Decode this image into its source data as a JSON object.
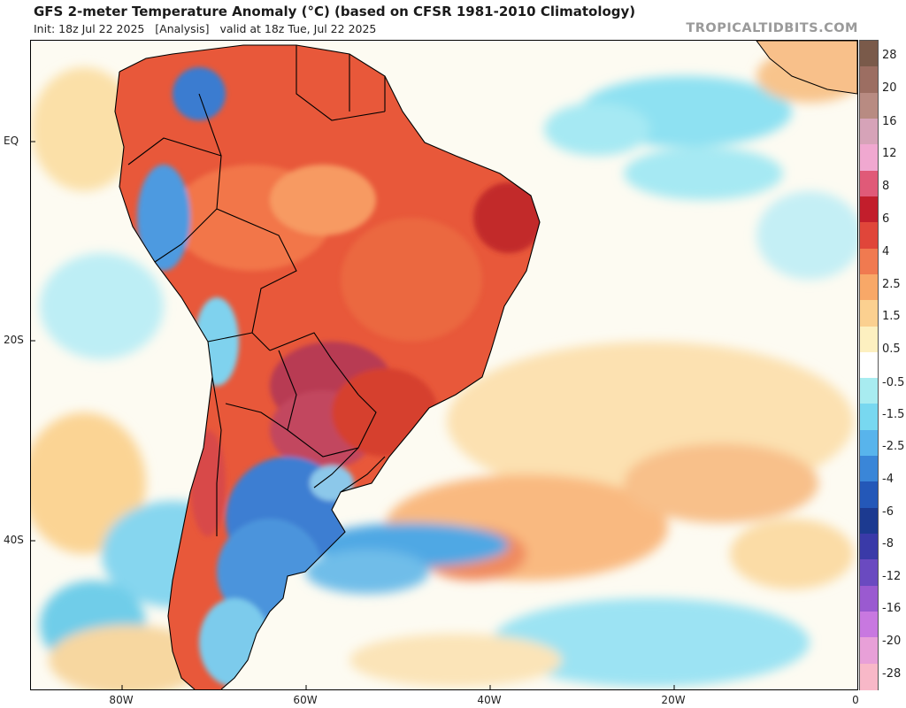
{
  "header": {
    "title": "GFS 2-meter Temperature Anomaly (°C) (based on CFSR 1981-2010 Climatology)",
    "subtitle": "Init: 18z Jul 22 2025   [Analysis]   valid at 18z Tue, Jul 22 2025",
    "brand": "TROPICALTIDBITS.COM"
  },
  "map": {
    "region": "South America and South Atlantic",
    "lat_range": [
      -55,
      13
    ],
    "lon_range": [
      -90,
      0
    ],
    "lat_ticks": [
      "EQ",
      "20S",
      "40S"
    ],
    "lon_ticks": [
      "80W",
      "60W",
      "40W",
      "20W",
      "0"
    ]
  },
  "colorbar": {
    "labels": [
      "28",
      "20",
      "16",
      "12",
      "8",
      "6",
      "4",
      "2.5",
      "1.5",
      "0.5",
      "-0.5",
      "-1.5",
      "-2.5",
      "-4",
      "-6",
      "-8",
      "-12",
      "-16",
      "-20",
      "-28"
    ],
    "colors": [
      "#7a5a4a",
      "#9c6e62",
      "#b88b82",
      "#d6a3b8",
      "#f0a8d0",
      "#e05a78",
      "#c21e2c",
      "#e0463a",
      "#f07a50",
      "#f8a868",
      "#fbd090",
      "#fdf0c0",
      "#ffffff",
      "#a8ecf0",
      "#78d8f0",
      "#58b4ec",
      "#3a86d8",
      "#2458b8",
      "#1c3a90",
      "#3a3aa8",
      "#6a4ac0",
      "#9a5ad0",
      "#c878e0",
      "#e8a0d8",
      "#f8b8c8"
    ]
  }
}
